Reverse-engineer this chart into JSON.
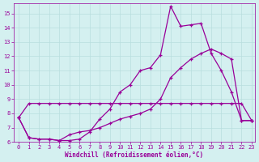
{
  "xlabel": "Windchill (Refroidissement éolien,°C)",
  "bg_color": "#d4f0f0",
  "grid_color": "#b8dede",
  "line_color": "#990099",
  "xlim": [
    -0.5,
    23.3
  ],
  "ylim": [
    6.0,
    15.7
  ],
  "yticks": [
    6,
    7,
    8,
    9,
    10,
    11,
    12,
    13,
    14,
    15
  ],
  "xticks": [
    0,
    1,
    2,
    3,
    4,
    5,
    6,
    7,
    8,
    9,
    10,
    11,
    12,
    13,
    14,
    15,
    16,
    17,
    18,
    19,
    20,
    21,
    22,
    23
  ],
  "series1_x": [
    0,
    1,
    2,
    3,
    4,
    5,
    6,
    7,
    8,
    9,
    10,
    11,
    12,
    13,
    14,
    15,
    16,
    17,
    18,
    19,
    20,
    21,
    22,
    23
  ],
  "series1_y": [
    7.7,
    8.7,
    8.7,
    8.7,
    8.7,
    8.7,
    8.7,
    8.7,
    8.7,
    8.7,
    8.7,
    8.7,
    8.7,
    8.7,
    8.7,
    8.7,
    8.7,
    8.7,
    8.7,
    8.7,
    8.7,
    8.7,
    8.7,
    7.5
  ],
  "series2_x": [
    0,
    1,
    2,
    3,
    4,
    5,
    6,
    7,
    8,
    9,
    10,
    11,
    12,
    13,
    14,
    15,
    16,
    17,
    18,
    19,
    20,
    21,
    22,
    23
  ],
  "series2_y": [
    7.7,
    6.3,
    6.2,
    6.2,
    6.1,
    6.1,
    6.2,
    6.7,
    7.6,
    8.3,
    9.5,
    10.0,
    11.0,
    11.2,
    12.1,
    15.5,
    14.1,
    14.2,
    14.3,
    12.2,
    11.0,
    9.5,
    7.5,
    7.5
  ],
  "series3_x": [
    0,
    1,
    2,
    3,
    4,
    5,
    6,
    7,
    8,
    9,
    10,
    11,
    12,
    13,
    14,
    15,
    16,
    17,
    18,
    19,
    20,
    21,
    22,
    23
  ],
  "series3_y": [
    7.7,
    6.3,
    6.2,
    6.2,
    6.1,
    6.5,
    6.7,
    6.8,
    7.0,
    7.3,
    7.6,
    7.8,
    8.0,
    8.3,
    9.0,
    10.5,
    11.2,
    11.8,
    12.2,
    12.5,
    12.2,
    11.8,
    7.5,
    7.5
  ]
}
